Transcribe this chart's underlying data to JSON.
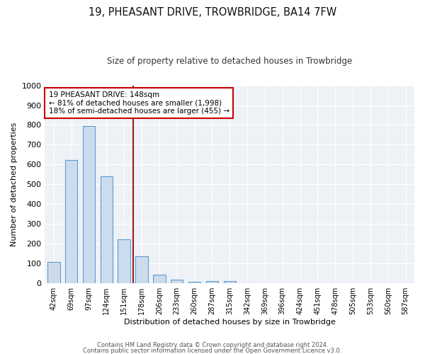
{
  "title": "19, PHEASANT DRIVE, TROWBRIDGE, BA14 7FW",
  "subtitle": "Size of property relative to detached houses in Trowbridge",
  "xlabel": "Distribution of detached houses by size in Trowbridge",
  "ylabel": "Number of detached properties",
  "bar_color": "#cddcec",
  "bar_edge_color": "#5b9bd5",
  "categories": [
    "42sqm",
    "69sqm",
    "97sqm",
    "124sqm",
    "151sqm",
    "178sqm",
    "206sqm",
    "233sqm",
    "260sqm",
    "287sqm",
    "315sqm",
    "342sqm",
    "369sqm",
    "396sqm",
    "424sqm",
    "451sqm",
    "478sqm",
    "505sqm",
    "533sqm",
    "560sqm",
    "587sqm"
  ],
  "values": [
    107,
    622,
    795,
    540,
    222,
    135,
    44,
    17,
    9,
    10,
    10,
    0,
    0,
    0,
    0,
    0,
    0,
    0,
    0,
    0,
    0
  ],
  "ylim": [
    0,
    1000
  ],
  "yticks": [
    0,
    100,
    200,
    300,
    400,
    500,
    600,
    700,
    800,
    900,
    1000
  ],
  "red_line_x": 4.5,
  "annotation_text": "19 PHEASANT DRIVE: 148sqm\n← 81% of detached houses are smaller (1,998)\n18% of semi-detached houses are larger (455) →",
  "annotation_box_color": "#ffffff",
  "annotation_box_edge_color": "#cc0000",
  "red_line_color": "#9b1c1c",
  "footer_line1": "Contains HM Land Registry data © Crown copyright and database right 2024.",
  "footer_line2": "Contains public sector information licensed under the Open Government Licence v3.0.",
  "bg_color": "#eef2f7",
  "grid_color": "#ffffff",
  "title_fontsize": 10.5,
  "subtitle_fontsize": 8.5,
  "bar_width": 0.7
}
